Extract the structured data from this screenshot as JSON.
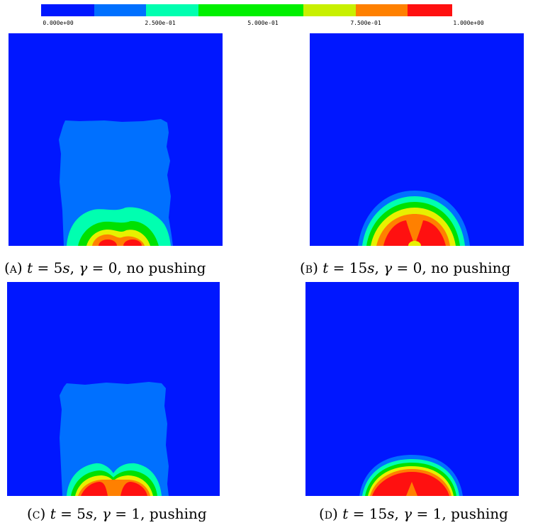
{
  "colorbar": {
    "colors": [
      "#0017ff",
      "#0070ff",
      "#00ffb0",
      "#00f000",
      "#80f020",
      "#d8f000",
      "#ff8000",
      "#ff1010"
    ],
    "ticks": [
      "0.000e+00",
      "2.500e-01",
      "5.000e-01",
      "7.500e-01",
      "1.000e+00"
    ]
  },
  "panels": [
    {
      "tag": "(a)",
      "t_value": "5",
      "gamma_value": "0",
      "mode": "no pushing"
    },
    {
      "tag": "(b)",
      "t_value": "15",
      "gamma_value": "0",
      "mode": "no pushing"
    },
    {
      "tag": "(c)",
      "t_value": "5",
      "gamma_value": "1",
      "mode": "pushing"
    },
    {
      "tag": "(d)",
      "t_value": "15",
      "gamma_value": "1",
      "mode": "pushing"
    }
  ],
  "palette": {
    "background": "#0017ff",
    "low": "#0070ff",
    "cyan": "#00ffb0",
    "green": "#00e000",
    "yellow": "#e8f000",
    "orange": "#ff8000",
    "red": "#ff1010"
  }
}
